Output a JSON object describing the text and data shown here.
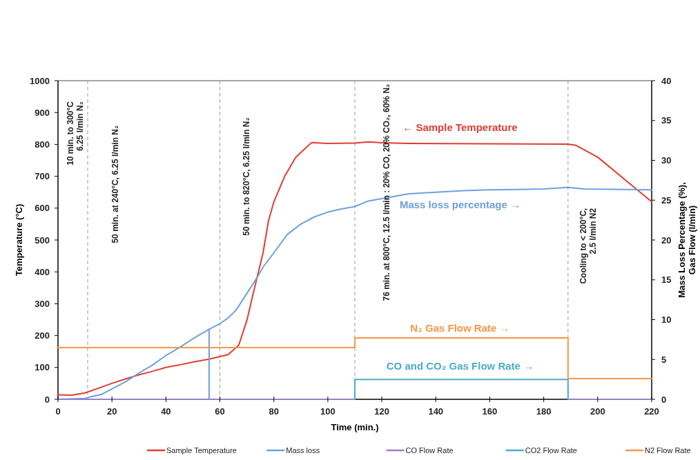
{
  "chart_data": {
    "type": "line",
    "xlabel": "Time (min.)",
    "ylabel": "Temperature (°C)",
    "y2label": "Mass Loss Percentage (%),\nGas Flow (l/min)",
    "xlim": [
      0,
      220
    ],
    "xticks": [
      0,
      20,
      40,
      60,
      80,
      100,
      120,
      140,
      160,
      180,
      200,
      220
    ],
    "ylim": [
      0,
      1000
    ],
    "yticks": [
      0,
      100,
      200,
      300,
      400,
      500,
      600,
      700,
      800,
      900,
      1000
    ],
    "y2lim": [
      0,
      40
    ],
    "y2ticks": [
      0,
      5,
      10,
      15,
      20,
      25,
      30,
      35,
      40
    ],
    "grid": false,
    "legend": "bottom",
    "marker": "none",
    "line_style": "solid",
    "series": [
      {
        "name": "Sample Temperature",
        "color": "#e03c31",
        "x": [
          0,
          5,
          10,
          15,
          20,
          25,
          30,
          35,
          40,
          45,
          50,
          56,
          60,
          63,
          65,
          67,
          70,
          72,
          74,
          76,
          78,
          80,
          84,
          88,
          90,
          94,
          100,
          110,
          115,
          120,
          130,
          189,
          192,
          200,
          210,
          220
        ],
        "values": [
          14,
          13,
          20,
          35,
          50,
          64,
          77,
          88,
          100,
          108,
          117,
          126,
          134,
          140,
          155,
          170,
          248,
          320,
          390,
          460,
          560,
          620,
          700,
          758,
          775,
          806,
          803,
          804,
          808,
          805,
          803,
          801,
          797,
          760,
          690,
          620
        ]
      },
      {
        "name": "Mass loss",
        "color": "#6fa0dc",
        "axis": "y2",
        "x": [
          0,
          10,
          12,
          16,
          20,
          25,
          30,
          35,
          40,
          45,
          50,
          56,
          56,
          56,
          60,
          63,
          66,
          70,
          74,
          76,
          80,
          85,
          90,
          95,
          100,
          105,
          110,
          115,
          120,
          130,
          140,
          150,
          160,
          180,
          189,
          195,
          220
        ],
        "values": [
          0,
          0.1,
          0.3,
          0.6,
          1.3,
          2.2,
          3.3,
          4.3,
          5.5,
          6.5,
          7.6,
          8.8,
          0,
          8.8,
          9.5,
          10.2,
          11.2,
          13.3,
          15.4,
          16.6,
          18.4,
          20.7,
          22,
          22.9,
          23.5,
          23.9,
          24.2,
          24.9,
          25.2,
          25.8,
          26,
          26.2,
          26.3,
          26.4,
          26.6,
          26.4,
          26.3
        ]
      },
      {
        "name": "CO Flow Rate",
        "color": "#9b7fc4",
        "axis": "y2",
        "x": [
          0,
          110,
          150,
          189,
          220
        ],
        "values": [
          0,
          0,
          null,
          0,
          0
        ]
      },
      {
        "name": "CO2 Flow Rate",
        "color": "#4bacc6",
        "axis": "y2",
        "x": [
          110,
          110,
          189,
          189
        ],
        "values": [
          0,
          2.5,
          2.5,
          0
        ]
      },
      {
        "name": "N2 Flow Rate",
        "color": "#f79646",
        "axis": "y2",
        "x": [
          0,
          110,
          110,
          189,
          189,
          220
        ],
        "values": [
          6.5,
          6.5,
          7.7,
          7.7,
          2.6,
          2.6
        ]
      }
    ],
    "ref_lines": [
      {
        "axis": "x",
        "value": 11,
        "color": "#999999",
        "line_style": "dashed"
      },
      {
        "axis": "x",
        "value": 60,
        "color": "#999999",
        "line_style": "dashed"
      },
      {
        "axis": "x",
        "value": 110,
        "color": "#999999",
        "line_style": "dashed"
      },
      {
        "axis": "x",
        "value": 189,
        "color": "#999999",
        "line_style": "dashed"
      }
    ],
    "annotations": [
      "10 min. to 300°C\n6.25 l/min N₂",
      "50 min. at  240°C, 6.25 l/min N₂",
      "50 min.  to  820°C, 6.25 l/min N₂",
      "76 min. at 800°C, 12.5 l/min : 20% CO, 20% CO₂, 60% N₂",
      "Cooling to < 200°C,\n2.5 l/min N2",
      "← Sample Temperature",
      "Mass loss percentage →",
      "N₂ Gas Flow Rate →",
      "CO and CO₂ Gas Flow Rate →"
    ]
  }
}
